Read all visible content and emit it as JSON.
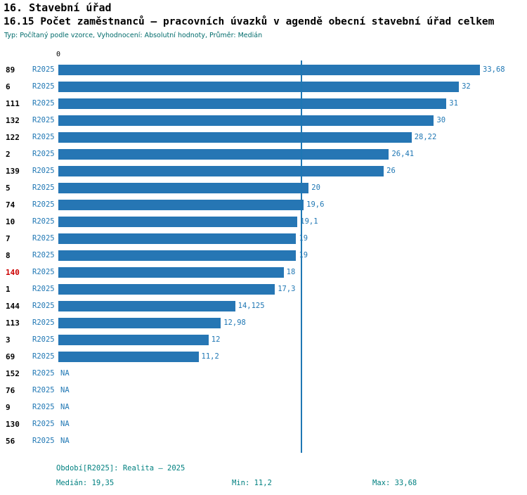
{
  "header": {
    "title1": "16. Stavební úřad",
    "title2": "16.15 Počet zaměstnanců – pracovních úvazků v agendě obecní stavební úřad celkem",
    "subtitle": "Typ: Počítaný podle vzorce, Vyhodnocení: Absolutní hodnoty, Průměr: Medián"
  },
  "chart_data": {
    "type": "bar",
    "orientation": "horizontal",
    "title": "16.15 Počet zaměstnanců – pracovních úvazků v agendě obecní stavební úřad celkem",
    "xlabel": "",
    "ylabel": "",
    "x_zero_label": "0",
    "xlim": [
      0,
      37.4
    ],
    "grid": false,
    "legend_position": "none",
    "rows": [
      {
        "id": "89",
        "period": "R2025",
        "value": 33.68,
        "label": "33,68",
        "highlight": false
      },
      {
        "id": "6",
        "period": "R2025",
        "value": 32,
        "label": "32",
        "highlight": false
      },
      {
        "id": "111",
        "period": "R2025",
        "value": 31,
        "label": "31",
        "highlight": false
      },
      {
        "id": "132",
        "period": "R2025",
        "value": 30,
        "label": "30",
        "highlight": false
      },
      {
        "id": "122",
        "period": "R2025",
        "value": 28.22,
        "label": "28,22",
        "highlight": false
      },
      {
        "id": "2",
        "period": "R2025",
        "value": 26.41,
        "label": "26,41",
        "highlight": false
      },
      {
        "id": "139",
        "period": "R2025",
        "value": 26,
        "label": "26",
        "highlight": false
      },
      {
        "id": "5",
        "period": "R2025",
        "value": 20,
        "label": "20",
        "highlight": false
      },
      {
        "id": "74",
        "period": "R2025",
        "value": 19.6,
        "label": "19,6",
        "highlight": false
      },
      {
        "id": "10",
        "period": "R2025",
        "value": 19.1,
        "label": "19,1",
        "highlight": false
      },
      {
        "id": "7",
        "period": "R2025",
        "value": 19,
        "label": "19",
        "highlight": false
      },
      {
        "id": "8",
        "period": "R2025",
        "value": 19,
        "label": "19",
        "highlight": false
      },
      {
        "id": "140",
        "period": "R2025",
        "value": 18,
        "label": "18",
        "highlight": true
      },
      {
        "id": "1",
        "period": "R2025",
        "value": 17.3,
        "label": "17,3",
        "highlight": false
      },
      {
        "id": "144",
        "period": "R2025",
        "value": 14.125,
        "label": "14,125",
        "highlight": false
      },
      {
        "id": "113",
        "period": "R2025",
        "value": 12.98,
        "label": "12,98",
        "highlight": false
      },
      {
        "id": "3",
        "period": "R2025",
        "value": 12,
        "label": "12",
        "highlight": false
      },
      {
        "id": "69",
        "period": "R2025",
        "value": 11.2,
        "label": "11,2",
        "highlight": false
      },
      {
        "id": "152",
        "period": "R2025",
        "value": null,
        "label": "NA",
        "highlight": false
      },
      {
        "id": "76",
        "period": "R2025",
        "value": null,
        "label": "NA",
        "highlight": false
      },
      {
        "id": "9",
        "period": "R2025",
        "value": null,
        "label": "NA",
        "highlight": false
      },
      {
        "id": "130",
        "period": "R2025",
        "value": null,
        "label": "NA",
        "highlight": false
      },
      {
        "id": "56",
        "period": "R2025",
        "value": null,
        "label": "NA",
        "highlight": false
      }
    ],
    "stats": {
      "median": 19.35,
      "min": 11.2,
      "max": 33.68
    }
  },
  "footer": {
    "period_line": "Období[R2025]: Realita – 2025",
    "median": "Medián: 19,35",
    "min": "Min: 11,2",
    "max": "Max: 33,68"
  },
  "colors": {
    "bar": "#2676b4",
    "label_blue": "#1f77b4",
    "footer_teal": "#008080",
    "subtitle_teal": "#006b6b",
    "highlight_red": "#cc0000"
  }
}
